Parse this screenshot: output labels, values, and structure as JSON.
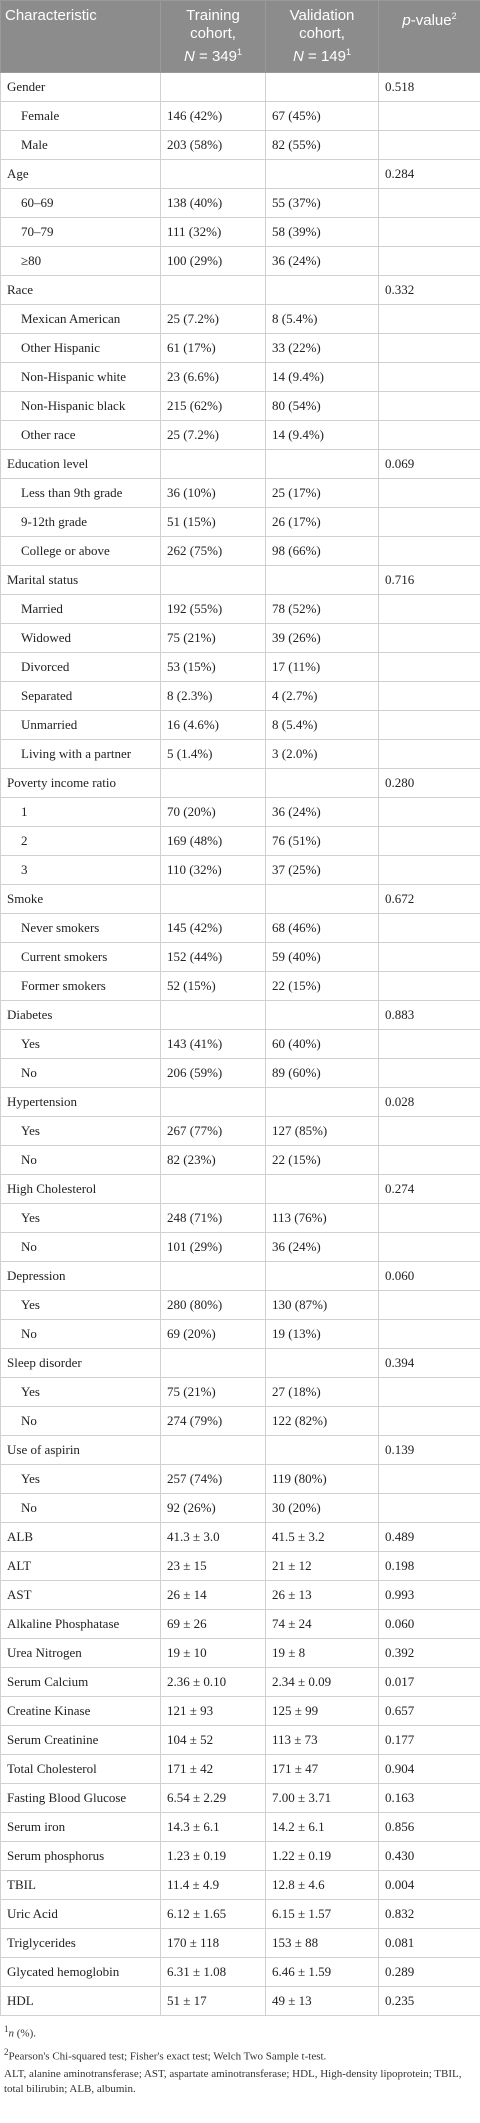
{
  "table": {
    "header": [
      {
        "text": "Characteristic"
      },
      {
        "line1": "Training",
        "line2": "cohort,",
        "italic": "N",
        "rest": " = 349",
        "sup": "1"
      },
      {
        "line1": "Validation",
        "line2": "cohort,",
        "italic": "N",
        "rest": " = 149",
        "sup": "1"
      },
      {
        "italic": "p",
        "rest": "-value",
        "sup": "2"
      }
    ],
    "rows": [
      {
        "label": "Gender",
        "p_value": "0.518"
      },
      {
        "label": "Female",
        "training": "146 (42%)",
        "validation": "67 (45%)",
        "indent": true
      },
      {
        "label": "Male",
        "training": "203 (58%)",
        "validation": "82 (55%)",
        "indent": true
      },
      {
        "label": "Age",
        "p_value": "0.284"
      },
      {
        "label": "60–69",
        "training": "138 (40%)",
        "validation": "55 (37%)",
        "indent": true
      },
      {
        "label": "70–79",
        "training": "111 (32%)",
        "validation": "58 (39%)",
        "indent": true
      },
      {
        "label": "≥80",
        "training": "100 (29%)",
        "validation": "36 (24%)",
        "indent": true
      },
      {
        "label": "Race",
        "p_value": "0.332"
      },
      {
        "label": "Mexican American",
        "training": "25 (7.2%)",
        "validation": "8 (5.4%)",
        "indent": true
      },
      {
        "label": "Other Hispanic",
        "training": "61 (17%)",
        "validation": "33 (22%)",
        "indent": true
      },
      {
        "label": "Non-Hispanic white",
        "training": "23 (6.6%)",
        "validation": "14 (9.4%)",
        "indent": true
      },
      {
        "label": "Non-Hispanic black",
        "training": "215 (62%)",
        "validation": "80 (54%)",
        "indent": true
      },
      {
        "label": "Other race",
        "training": "25 (7.2%)",
        "validation": "14 (9.4%)",
        "indent": true
      },
      {
        "label": "Education level",
        "p_value": "0.069"
      },
      {
        "label": "Less than 9th grade",
        "training": "36 (10%)",
        "validation": "25 (17%)",
        "indent": true
      },
      {
        "label": "9-12th grade",
        "training": "51 (15%)",
        "validation": "26 (17%)",
        "indent": true
      },
      {
        "label": "College or above",
        "training": "262 (75%)",
        "validation": "98 (66%)",
        "indent": true
      },
      {
        "label": "Marital status",
        "p_value": "0.716"
      },
      {
        "label": "Married",
        "training": "192 (55%)",
        "validation": "78 (52%)",
        "indent": true
      },
      {
        "label": "Widowed",
        "training": "75 (21%)",
        "validation": "39 (26%)",
        "indent": true
      },
      {
        "label": "Divorced",
        "training": "53 (15%)",
        "validation": "17 (11%)",
        "indent": true
      },
      {
        "label": "Separated",
        "training": "8 (2.3%)",
        "validation": "4 (2.7%)",
        "indent": true
      },
      {
        "label": "Unmarried",
        "training": "16 (4.6%)",
        "validation": "8 (5.4%)",
        "indent": true
      },
      {
        "label": "Living with a partner",
        "training": "5 (1.4%)",
        "validation": "3 (2.0%)",
        "indent": true
      },
      {
        "label": "Poverty income ratio",
        "p_value": "0.280"
      },
      {
        "label": "1",
        "training": "70 (20%)",
        "validation": "36 (24%)",
        "indent": true
      },
      {
        "label": "2",
        "training": "169 (48%)",
        "validation": "76 (51%)",
        "indent": true
      },
      {
        "label": "3",
        "training": "110 (32%)",
        "validation": "37 (25%)",
        "indent": true
      },
      {
        "label": "Smoke",
        "p_value": "0.672"
      },
      {
        "label": "Never smokers",
        "training": "145 (42%)",
        "validation": "68 (46%)",
        "indent": true
      },
      {
        "label": "Current smokers",
        "training": "152 (44%)",
        "validation": "59 (40%)",
        "indent": true
      },
      {
        "label": "Former smokers",
        "training": "52 (15%)",
        "validation": "22 (15%)",
        "indent": true
      },
      {
        "label": "Diabetes",
        "p_value": "0.883"
      },
      {
        "label": "Yes",
        "training": "143 (41%)",
        "validation": "60 (40%)",
        "indent": true
      },
      {
        "label": "No",
        "training": "206 (59%)",
        "validation": "89 (60%)",
        "indent": true
      },
      {
        "label": "Hypertension",
        "p_value": "0.028"
      },
      {
        "label": "Yes",
        "training": "267 (77%)",
        "validation": "127 (85%)",
        "indent": true
      },
      {
        "label": "No",
        "training": "82 (23%)",
        "validation": "22 (15%)",
        "indent": true
      },
      {
        "label": "High Cholesterol",
        "p_value": "0.274"
      },
      {
        "label": "Yes",
        "training": "248 (71%)",
        "validation": "113 (76%)",
        "indent": true
      },
      {
        "label": "No",
        "training": "101 (29%)",
        "validation": "36 (24%)",
        "indent": true
      },
      {
        "label": "Depression",
        "p_value": "0.060"
      },
      {
        "label": "Yes",
        "training": "280 (80%)",
        "validation": "130 (87%)",
        "indent": true
      },
      {
        "label": "No",
        "training": "69 (20%)",
        "validation": "19 (13%)",
        "indent": true
      },
      {
        "label": "Sleep disorder",
        "p_value": "0.394"
      },
      {
        "label": "Yes",
        "training": "75 (21%)",
        "validation": "27 (18%)",
        "indent": true
      },
      {
        "label": "No",
        "training": "274 (79%)",
        "validation": "122 (82%)",
        "indent": true
      },
      {
        "label": "Use of aspirin",
        "p_value": "0.139"
      },
      {
        "label": "Yes",
        "training": "257 (74%)",
        "validation": "119 (80%)",
        "indent": true
      },
      {
        "label": "No",
        "training": "92 (26%)",
        "validation": "30 (20%)",
        "indent": true
      },
      {
        "label": "ALB",
        "training": "41.3 ± 3.0",
        "validation": "41.5 ± 3.2",
        "p_value": "0.489"
      },
      {
        "label": "ALT",
        "training": "23 ± 15",
        "validation": "21 ± 12",
        "p_value": "0.198"
      },
      {
        "label": "AST",
        "training": "26 ± 14",
        "validation": "26 ± 13",
        "p_value": "0.993"
      },
      {
        "label": "Alkaline Phosphatase",
        "training": "69 ± 26",
        "validation": "74 ± 24",
        "p_value": "0.060"
      },
      {
        "label": "Urea Nitrogen",
        "training": "19 ± 10",
        "validation": "19 ± 8",
        "p_value": "0.392"
      },
      {
        "label": "Serum Calcium",
        "training": "2.36 ± 0.10",
        "validation": "2.34 ± 0.09",
        "p_value": "0.017"
      },
      {
        "label": "Creatine Kinase",
        "training": "121 ± 93",
        "validation": "125 ± 99",
        "p_value": "0.657"
      },
      {
        "label": "Serum Creatinine",
        "training": "104 ± 52",
        "validation": "113 ± 73",
        "p_value": "0.177"
      },
      {
        "label": "Total Cholesterol",
        "training": "171 ± 42",
        "validation": "171 ± 47",
        "p_value": "0.904"
      },
      {
        "label": "Fasting Blood Glucose",
        "training": "6.54 ± 2.29",
        "validation": "7.00 ± 3.71",
        "p_value": "0.163"
      },
      {
        "label": "Serum iron",
        "training": "14.3 ± 6.1",
        "validation": "14.2 ± 6.1",
        "p_value": "0.856"
      },
      {
        "label": "Serum phosphorus",
        "training": "1.23 ± 0.19",
        "validation": "1.22 ± 0.19",
        "p_value": "0.430"
      },
      {
        "label": "TBIL",
        "training": "11.4 ± 4.9",
        "validation": "12.8 ± 4.6",
        "p_value": "0.004"
      },
      {
        "label": "Uric Acid",
        "training": "6.12 ± 1.65",
        "validation": "6.15 ± 1.57",
        "p_value": "0.832"
      },
      {
        "label": "Triglycerides",
        "training": "170 ± 118",
        "validation": "153 ± 88",
        "p_value": "0.081"
      },
      {
        "label": "Glycated hemoglobin",
        "training": "6.31 ± 1.08",
        "validation": "6.46 ± 1.59",
        "p_value": "0.289"
      },
      {
        "label": "HDL",
        "training": "51 ± 17",
        "validation": "49 ± 13",
        "p_value": "0.235"
      }
    ],
    "footnotes": [
      {
        "sup": "1",
        "italic": "n",
        "text": " (%)."
      },
      {
        "sup": "2",
        "text": "Pearson's Chi-squared test; Fisher's exact test; Welch Two Sample t-test."
      },
      {
        "text": "ALT, alanine aminotransferase; AST, aspartate aminotransferase; HDL, High-density lipoprotein; TBIL, total bilirubin; ALB, albumin."
      }
    ]
  }
}
